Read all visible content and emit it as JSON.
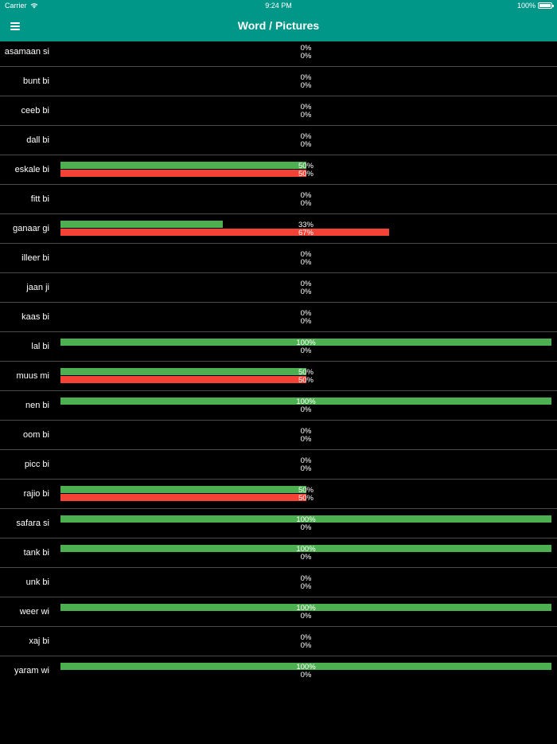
{
  "status_bar": {
    "carrier": "Carrier",
    "time": "9:24 PM",
    "battery": "100%"
  },
  "header": {
    "title": "Word / Pictures",
    "menu_icon": "hamburger-menu-icon"
  },
  "colors": {
    "app_bar": "#009688",
    "correct_bar": "#4caf50",
    "wrong_bar": "#f44336",
    "background": "#000000"
  },
  "rows": [
    {
      "word": "asamaan si",
      "correct": 0,
      "wrong": 0,
      "correct_label": "0%",
      "wrong_label": "0%"
    },
    {
      "word": "bunt bi",
      "correct": 0,
      "wrong": 0,
      "correct_label": "0%",
      "wrong_label": "0%"
    },
    {
      "word": "ceeb bi",
      "correct": 0,
      "wrong": 0,
      "correct_label": "0%",
      "wrong_label": "0%"
    },
    {
      "word": "dall bi",
      "correct": 0,
      "wrong": 0,
      "correct_label": "0%",
      "wrong_label": "0%"
    },
    {
      "word": "eskale bi",
      "correct": 50,
      "wrong": 50,
      "correct_label": "50%",
      "wrong_label": "50%"
    },
    {
      "word": "fitt bi",
      "correct": 0,
      "wrong": 0,
      "correct_label": "0%",
      "wrong_label": "0%"
    },
    {
      "word": "ganaar gi",
      "correct": 33,
      "wrong": 67,
      "correct_label": "33%",
      "wrong_label": "67%"
    },
    {
      "word": "illeer bi",
      "correct": 0,
      "wrong": 0,
      "correct_label": "0%",
      "wrong_label": "0%"
    },
    {
      "word": "jaan ji",
      "correct": 0,
      "wrong": 0,
      "correct_label": "0%",
      "wrong_label": "0%"
    },
    {
      "word": "kaas bi",
      "correct": 0,
      "wrong": 0,
      "correct_label": "0%",
      "wrong_label": "0%"
    },
    {
      "word": "lal bi",
      "correct": 100,
      "wrong": 0,
      "correct_label": "100%",
      "wrong_label": "0%"
    },
    {
      "word": "muus mi",
      "correct": 50,
      "wrong": 50,
      "correct_label": "50%",
      "wrong_label": "50%"
    },
    {
      "word": "nen bi",
      "correct": 100,
      "wrong": 0,
      "correct_label": "100%",
      "wrong_label": "0%"
    },
    {
      "word": "oom bi",
      "correct": 0,
      "wrong": 0,
      "correct_label": "0%",
      "wrong_label": "0%"
    },
    {
      "word": "picc bi",
      "correct": 0,
      "wrong": 0,
      "correct_label": "0%",
      "wrong_label": "0%"
    },
    {
      "word": "rajio bi",
      "correct": 50,
      "wrong": 50,
      "correct_label": "50%",
      "wrong_label": "50%"
    },
    {
      "word": "safara si",
      "correct": 100,
      "wrong": 0,
      "correct_label": "100%",
      "wrong_label": "0%"
    },
    {
      "word": "tank bi",
      "correct": 100,
      "wrong": 0,
      "correct_label": "100%",
      "wrong_label": "0%"
    },
    {
      "word": "unk bi",
      "correct": 0,
      "wrong": 0,
      "correct_label": "0%",
      "wrong_label": "0%"
    },
    {
      "word": "weer wi",
      "correct": 100,
      "wrong": 0,
      "correct_label": "100%",
      "wrong_label": "0%"
    },
    {
      "word": "xaj bi",
      "correct": 0,
      "wrong": 0,
      "correct_label": "0%",
      "wrong_label": "0%"
    },
    {
      "word": "yaram wi",
      "correct": 100,
      "wrong": 0,
      "correct_label": "100%",
      "wrong_label": "0%"
    }
  ]
}
